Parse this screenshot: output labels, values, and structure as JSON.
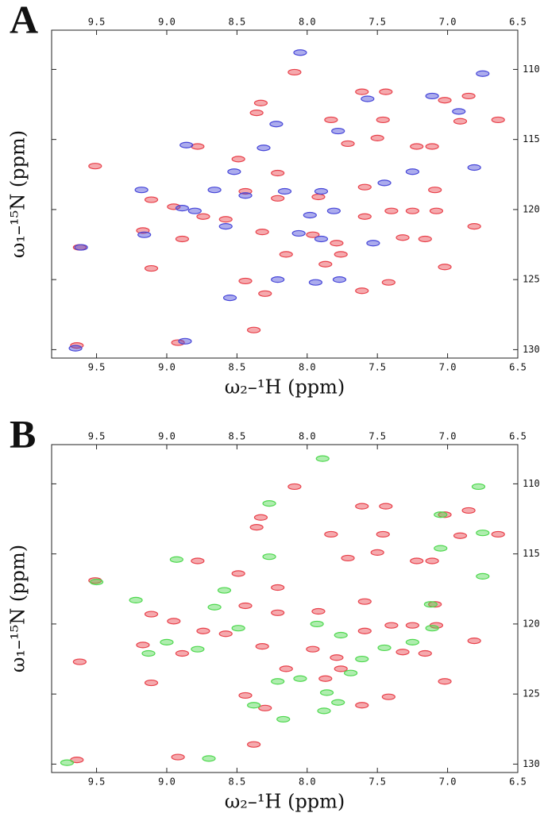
{
  "chart_data": [
    {
      "type": "scatter",
      "panel_label": "A",
      "x_label": "ω₂–¹H (ppm)",
      "y_label": "ω₁–¹⁵N (ppm)",
      "xlim": [
        9.82,
        6.5
      ],
      "ylim": [
        130.6,
        107.2
      ],
      "xticks": [
        9.5,
        {
          "value": 9,
          "label": "9.0"
        },
        8.5,
        {
          "value": 8,
          "label": "8.0"
        },
        7.5,
        {
          "value": 7,
          "label": "7.0"
        },
        6.5
      ],
      "yticks": [
        110,
        115,
        120,
        125,
        130
      ],
      "series": [
        {
          "color": "#e8404a",
          "x": [
            8.09,
            8.33,
            8.36,
            7.83,
            7.46,
            8.78,
            9.51,
            9.11,
            8.95,
            9.62,
            9.11,
            8.44,
            8.3,
            7.87,
            7.42,
            7.61,
            8.38,
            8.92,
            9.64,
            6.91,
            6.64,
            7.11,
            7.22,
            6.81,
            7.25,
            7.08,
            7.4,
            7.59,
            7.32,
            7.16,
            7.59,
            7.09,
            7.71,
            7.5,
            8.21,
            8.49,
            8.32,
            7.96,
            7.79,
            7.76,
            8.15,
            7.02,
            8.74,
            8.58,
            7.61,
            7.44,
            7.02,
            6.85,
            8.21,
            8.44,
            7.92,
            8.89,
            9.17
          ],
          "values": [
            110.2,
            112.4,
            113.1,
            113.6,
            113.6,
            115.5,
            116.9,
            119.3,
            119.8,
            122.7,
            124.2,
            125.1,
            126.0,
            123.9,
            125.2,
            125.8,
            128.6,
            129.5,
            129.7,
            113.7,
            113.6,
            115.5,
            115.5,
            121.2,
            120.1,
            120.1,
            120.1,
            120.5,
            122.0,
            122.1,
            118.4,
            118.6,
            115.3,
            114.9,
            117.4,
            116.4,
            121.6,
            121.8,
            122.4,
            123.2,
            123.2,
            124.1,
            120.5,
            120.7,
            111.6,
            111.6,
            112.2,
            111.9,
            119.2,
            118.7,
            119.1,
            122.1,
            121.5
          ]
        },
        {
          "color": "#4646d8",
          "x": [
            8.05,
            9.65,
            9.61,
            8.87,
            9.18,
            9.16,
            8.86,
            8.55,
            8.21,
            7.94,
            7.77,
            8.06,
            7.9,
            8.22,
            7.57,
            7.11,
            6.75,
            6.92,
            7.25,
            7.45,
            8.66,
            8.52,
            8.31,
            8.44,
            8.16,
            7.9,
            7.81,
            8.8,
            8.58,
            8.89,
            6.81,
            7.53,
            7.78,
            7.98
          ],
          "values": [
            108.8,
            129.9,
            122.7,
            129.4,
            118.6,
            121.8,
            115.4,
            126.3,
            125.0,
            125.2,
            125.0,
            121.7,
            122.1,
            113.9,
            112.1,
            111.9,
            110.3,
            113.0,
            117.3,
            118.1,
            118.6,
            117.3,
            115.6,
            119.0,
            118.7,
            118.7,
            120.1,
            120.1,
            121.2,
            119.9,
            117.0,
            122.4,
            114.4,
            120.4
          ]
        }
      ]
    },
    {
      "type": "scatter",
      "panel_label": "B",
      "x_label": "ω₂–¹H (ppm)",
      "y_label": "ω₁–¹⁵N (ppm)",
      "xlim": [
        9.82,
        6.5
      ],
      "ylim": [
        130.6,
        107.2
      ],
      "xticks": [
        9.5,
        {
          "value": 9,
          "label": "9.0"
        },
        8.5,
        {
          "value": 8,
          "label": "8.0"
        },
        7.5,
        {
          "value": 7,
          "label": "7.0"
        },
        6.5
      ],
      "yticks": [
        110,
        115,
        120,
        125,
        130
      ],
      "series": [
        {
          "color": "#e8404a",
          "x": [
            8.09,
            8.33,
            8.36,
            7.83,
            7.46,
            8.78,
            9.51,
            9.11,
            8.95,
            9.62,
            9.11,
            8.44,
            8.3,
            7.87,
            7.42,
            7.61,
            8.38,
            8.92,
            9.64,
            6.91,
            6.64,
            7.11,
            7.22,
            6.81,
            7.25,
            7.08,
            7.4,
            7.59,
            7.32,
            7.16,
            7.59,
            7.09,
            7.71,
            7.5,
            8.21,
            8.49,
            8.32,
            7.96,
            7.79,
            7.76,
            8.15,
            7.02,
            8.74,
            8.58,
            7.61,
            7.44,
            7.02,
            6.85,
            8.21,
            8.44,
            7.92,
            8.89,
            9.17
          ],
          "values": [
            110.2,
            112.4,
            113.1,
            113.6,
            113.6,
            115.5,
            116.9,
            119.3,
            119.8,
            122.7,
            124.2,
            125.1,
            126.0,
            123.9,
            125.2,
            125.8,
            128.6,
            129.5,
            129.7,
            113.7,
            113.6,
            115.5,
            115.5,
            121.2,
            120.1,
            120.1,
            120.1,
            120.5,
            122.0,
            122.1,
            118.4,
            118.6,
            115.3,
            114.9,
            117.4,
            116.4,
            121.6,
            121.8,
            122.4,
            123.2,
            123.2,
            124.1,
            120.5,
            120.7,
            111.6,
            111.6,
            112.2,
            111.9,
            119.2,
            118.7,
            119.1,
            122.1,
            121.5
          ]
        },
        {
          "color": "#4ed84e",
          "x": [
            7.89,
            9.71,
            8.7,
            9.5,
            9.22,
            9.13,
            9.0,
            8.93,
            8.59,
            8.66,
            8.17,
            8.38,
            8.21,
            8.05,
            7.88,
            7.78,
            7.69,
            7.86,
            8.27,
            7.05,
            6.78,
            6.75,
            7.05,
            6.75,
            7.12,
            7.11,
            7.25,
            7.45,
            7.61,
            7.76,
            7.93,
            8.27,
            8.78,
            8.49
          ],
          "values": [
            108.2,
            129.9,
            129.6,
            117.0,
            118.3,
            122.1,
            121.3,
            115.4,
            117.6,
            118.8,
            126.8,
            125.8,
            124.1,
            123.9,
            126.2,
            125.6,
            123.5,
            124.9,
            111.4,
            112.2,
            110.2,
            113.5,
            114.6,
            116.6,
            118.6,
            120.3,
            121.3,
            121.7,
            122.5,
            120.8,
            120.0,
            115.2,
            121.8,
            120.3
          ]
        }
      ]
    }
  ]
}
